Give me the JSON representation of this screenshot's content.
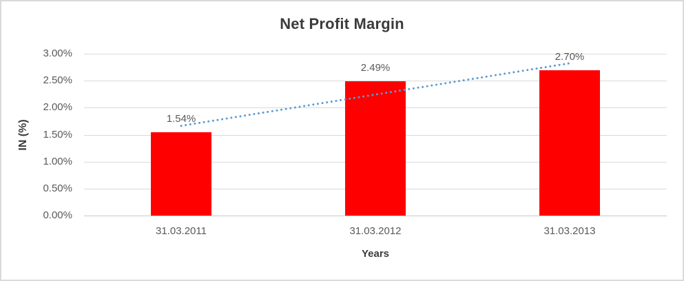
{
  "chart_data": {
    "type": "bar",
    "title": "Net Profit Margin",
    "categories": [
      "31.03.2011",
      "31.03.2012",
      "31.03.2013"
    ],
    "values": [
      1.54,
      2.49,
      2.7
    ],
    "data_labels": [
      "1.54%",
      "2.49%",
      "2.70%"
    ],
    "xlabel": "Years",
    "ylabel": "IN (%)",
    "ylim": [
      0,
      3.0
    ],
    "ytick_step": 0.5,
    "ytick_labels": [
      "0.00%",
      "0.50%",
      "1.00%",
      "1.50%",
      "2.00%",
      "2.50%",
      "3.00%"
    ],
    "grid": true,
    "legend": "none",
    "bar_color": "#ff0000",
    "trendline": {
      "type": "linear",
      "style": "dotted",
      "color": "#5b9bd5"
    }
  },
  "styles": {
    "grid_color": "#d9d9d9",
    "axis_line_color": "#c8c8c8",
    "tick_text_color": "#595959",
    "title_text_color": "#3b3b3b",
    "page_border_color": "#d9d9d9",
    "background": "#ffffff"
  }
}
